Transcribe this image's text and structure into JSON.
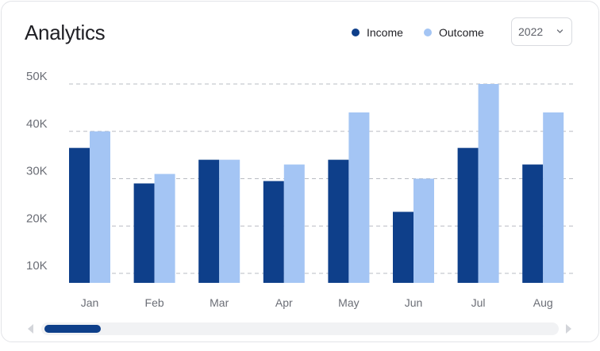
{
  "card": {
    "title": "Analytics",
    "year_select": {
      "value": "2022",
      "icon": "chevron-down-icon"
    }
  },
  "colors": {
    "income": "#0e3f8a",
    "outcome": "#a4c5f4",
    "grid": "#b9bcc3",
    "axis_text": "#6b6e76"
  },
  "chart_data": {
    "type": "bar",
    "title": "",
    "xlabel": "",
    "ylabel": "",
    "categories": [
      "Jan",
      "Feb",
      "Mar",
      "Apr",
      "May",
      "Jun",
      "Jul",
      "Aug"
    ],
    "series": [
      {
        "name": "Income",
        "values": [
          36.5,
          29,
          34,
          29.5,
          34,
          23,
          36.5,
          33
        ]
      },
      {
        "name": "Outcome",
        "values": [
          40,
          31,
          34,
          33,
          44,
          30,
          50,
          44
        ]
      }
    ],
    "yticks": [
      "10K",
      "20K",
      "30K",
      "40K",
      "50K"
    ],
    "ytick_values": [
      10,
      20,
      30,
      40,
      50
    ],
    "ylim": [
      8,
      50
    ],
    "grid": true,
    "legend_position": "top-right"
  },
  "scrollbar": {
    "position_fraction": 0.0,
    "visible_fraction": 0.11
  }
}
